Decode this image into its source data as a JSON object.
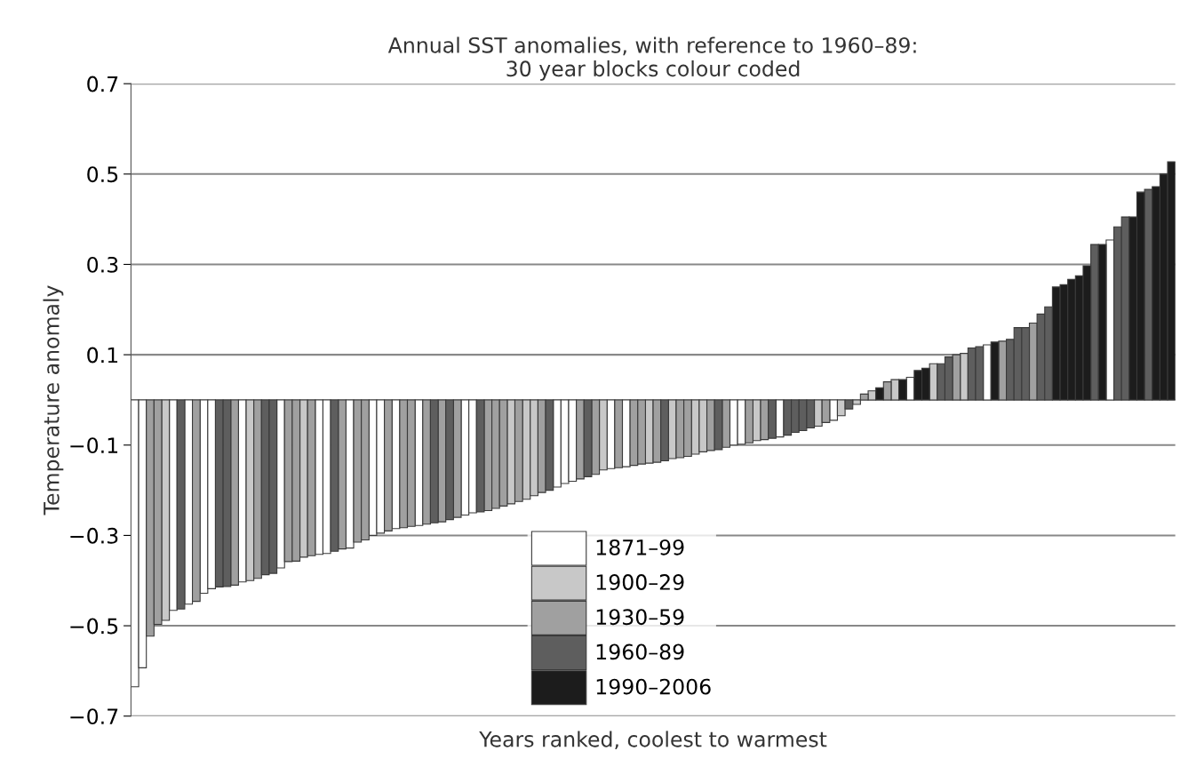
{
  "chart_data": {
    "type": "bar",
    "title": "Annual SST anomalies, with reference to 1960–89:\n30 year blocks colour coded",
    "xlabel": "Years ranked, coolest to warmest",
    "ylabel": "Temperature anomaly",
    "categories": [
      null,
      null,
      null,
      null,
      null,
      null,
      null,
      null,
      null,
      null,
      null,
      null,
      null,
      null,
      null,
      null,
      null,
      null,
      null,
      null,
      null,
      null,
      null,
      null,
      null,
      null,
      null,
      null,
      null,
      null,
      null,
      null,
      null,
      null,
      null,
      null,
      null,
      null,
      null,
      null,
      null,
      null,
      null,
      null,
      null,
      null,
      null,
      null,
      null,
      null,
      null,
      null,
      null,
      null,
      null,
      null,
      null,
      null,
      null,
      null,
      null,
      null,
      null,
      null,
      null,
      null,
      null,
      null,
      null,
      null,
      null,
      null,
      null,
      null,
      null,
      null,
      null,
      null,
      null,
      null,
      null,
      null,
      null,
      null,
      null,
      null,
      null,
      null,
      null,
      null,
      null,
      null,
      null,
      null,
      null,
      null,
      null,
      null,
      null,
      null,
      null,
      null,
      null,
      null,
      null,
      null,
      null,
      null,
      null,
      null,
      null,
      null,
      null,
      null,
      null,
      null,
      null,
      null,
      null,
      null,
      null,
      null,
      null,
      null,
      null,
      null,
      null,
      null,
      null,
      null,
      null,
      null,
      null,
      null,
      null,
      null
    ],
    "series": [
      {
        "name": "1871–99",
        "color": "#ffffff",
        "values": [
          -0.635,
          -0.593,
          null,
          null,
          null,
          -0.466,
          null,
          -0.452,
          null,
          -0.428,
          -0.418,
          null,
          null,
          null,
          -0.403,
          null,
          null,
          null,
          null,
          -0.372,
          null,
          null,
          null,
          null,
          -0.342,
          -0.34,
          null,
          null,
          -0.328,
          null,
          null,
          -0.3,
          -0.295,
          null,
          -0.285,
          null,
          null,
          -0.278,
          null,
          null,
          null,
          null,
          null,
          -0.255,
          -0.25,
          null,
          null,
          null,
          null,
          null,
          null,
          null,
          null,
          null,
          null,
          -0.193,
          -0.185,
          -0.18,
          null,
          null,
          null,
          null,
          -0.152,
          null,
          -0.148,
          null,
          null,
          null,
          null,
          null,
          null,
          null,
          null,
          null,
          null,
          null,
          null,
          null,
          -0.1,
          -0.098,
          null,
          null,
          null,
          null,
          -0.082,
          null,
          null,
          null,
          null,
          null,
          null,
          -0.045,
          null,
          null,
          null,
          null,
          null,
          null,
          null,
          null,
          null,
          0.05,
          null,
          null,
          null,
          null,
          null,
          null,
          null,
          null,
          null,
          0.122,
          null,
          null,
          null,
          null,
          null,
          null,
          null,
          null,
          null,
          null,
          null,
          null,
          null,
          null,
          null,
          0.354,
          null,
          null,
          null,
          null,
          null,
          null,
          null,
          null
        ]
      },
      {
        "name": "1900–29",
        "color": "#c8c8c8",
        "values": [
          null,
          null,
          null,
          null,
          -0.488,
          null,
          null,
          null,
          null,
          null,
          null,
          null,
          null,
          null,
          null,
          -0.4,
          null,
          null,
          null,
          null,
          null,
          null,
          -0.348,
          null,
          null,
          null,
          null,
          null,
          null,
          null,
          null,
          null,
          null,
          null,
          null,
          null,
          null,
          null,
          null,
          null,
          null,
          null,
          null,
          null,
          null,
          null,
          null,
          null,
          null,
          -0.23,
          null,
          -0.22,
          -0.212,
          null,
          null,
          null,
          null,
          null,
          null,
          null,
          null,
          -0.155,
          null,
          null,
          null,
          null,
          null,
          -0.14,
          null,
          null,
          -0.13,
          null,
          null,
          -0.12,
          -0.115,
          null,
          null,
          null,
          null,
          null,
          null,
          -0.09,
          null,
          null,
          null,
          null,
          null,
          null,
          null,
          -0.058,
          null,
          null,
          -0.035,
          null,
          -0.01,
          null,
          0.02,
          null,
          null,
          0.045,
          null,
          null,
          null,
          null,
          0.08,
          null,
          null,
          null,
          0.103,
          null,
          null,
          null,
          null,
          null,
          null,
          null,
          null,
          null,
          null,
          null,
          null,
          null,
          null,
          null,
          null,
          null,
          null,
          null,
          null,
          null,
          null,
          null,
          null,
          null,
          null,
          null
        ]
      },
      {
        "name": "1930–59",
        "color": "#a0a0a0",
        "values": [
          null,
          null,
          -0.523,
          -0.497,
          null,
          null,
          null,
          null,
          -0.446,
          null,
          null,
          null,
          null,
          -0.41,
          null,
          null,
          -0.395,
          null,
          null,
          null,
          -0.358,
          -0.357,
          null,
          -0.345,
          null,
          null,
          null,
          -0.33,
          null,
          -0.315,
          -0.31,
          null,
          null,
          -0.29,
          null,
          -0.283,
          -0.28,
          null,
          -0.275,
          null,
          -0.27,
          null,
          -0.26,
          null,
          null,
          null,
          -0.245,
          -0.24,
          -0.235,
          null,
          -0.225,
          null,
          null,
          -0.205,
          null,
          null,
          null,
          null,
          -0.175,
          null,
          -0.165,
          null,
          null,
          -0.15,
          null,
          -0.145,
          -0.142,
          null,
          -0.138,
          null,
          null,
          -0.128,
          -0.125,
          null,
          null,
          -0.112,
          null,
          -0.105,
          null,
          null,
          -0.095,
          null,
          -0.088,
          null,
          null,
          null,
          null,
          null,
          null,
          null,
          -0.05,
          null,
          null,
          null,
          null,
          0.013,
          null,
          null,
          0.04,
          null,
          null,
          null,
          null,
          null,
          null,
          null,
          null,
          0.1,
          null,
          null,
          null,
          null,
          null,
          0.13,
          null,
          null,
          null,
          0.17,
          null,
          null,
          null,
          null,
          null,
          null,
          null,
          null,
          null,
          null,
          null,
          null,
          null,
          null,
          null,
          null,
          null,
          null
        ]
      },
      {
        "name": "1960–89",
        "color": "#5e5e5e",
        "values": [
          null,
          null,
          null,
          null,
          null,
          null,
          -0.463,
          null,
          null,
          null,
          null,
          -0.414,
          -0.413,
          null,
          null,
          null,
          null,
          -0.387,
          -0.384,
          null,
          null,
          null,
          null,
          null,
          null,
          null,
          -0.335,
          null,
          null,
          null,
          null,
          null,
          null,
          null,
          null,
          null,
          null,
          null,
          null,
          -0.272,
          null,
          -0.265,
          null,
          null,
          null,
          -0.248,
          null,
          null,
          null,
          null,
          null,
          null,
          null,
          null,
          -0.2,
          null,
          null,
          null,
          null,
          -0.17,
          null,
          null,
          null,
          null,
          null,
          null,
          null,
          null,
          null,
          -0.135,
          null,
          null,
          null,
          null,
          null,
          null,
          -0.11,
          null,
          null,
          null,
          null,
          null,
          null,
          -0.085,
          null,
          -0.078,
          -0.072,
          -0.068,
          -0.062,
          null,
          null,
          null,
          null,
          -0.02,
          null,
          null,
          null,
          null,
          null,
          null,
          null,
          null,
          null,
          null,
          null,
          0.08,
          0.095,
          null,
          null,
          0.115,
          0.118,
          null,
          null,
          null,
          0.134,
          0.16,
          0.16,
          null,
          0.19,
          0.206,
          null,
          null,
          null,
          null,
          null,
          0.344,
          null,
          null,
          0.383,
          0.405,
          null,
          null,
          0.466,
          null,
          null,
          null
        ]
      },
      {
        "name": "1990–2006",
        "color": "#1c1c1c",
        "values": [
          null,
          null,
          null,
          null,
          null,
          null,
          null,
          null,
          null,
          null,
          null,
          null,
          null,
          null,
          null,
          null,
          null,
          null,
          null,
          null,
          null,
          null,
          null,
          null,
          null,
          null,
          null,
          null,
          null,
          null,
          null,
          null,
          null,
          null,
          null,
          null,
          null,
          null,
          null,
          null,
          null,
          null,
          null,
          null,
          null,
          null,
          null,
          null,
          null,
          null,
          null,
          null,
          null,
          null,
          null,
          null,
          null,
          null,
          null,
          null,
          null,
          null,
          null,
          null,
          null,
          null,
          null,
          null,
          null,
          null,
          null,
          null,
          null,
          null,
          null,
          null,
          null,
          null,
          null,
          null,
          null,
          null,
          null,
          null,
          null,
          null,
          null,
          null,
          null,
          null,
          null,
          null,
          null,
          null,
          null,
          null,
          null,
          0.027,
          null,
          null,
          0.045,
          null,
          0.065,
          0.07,
          null,
          null,
          null,
          null,
          null,
          null,
          null,
          null,
          0.128,
          null,
          null,
          null,
          null,
          null,
          null,
          null,
          0.25,
          0.255,
          0.267,
          0.275,
          0.297,
          null,
          0.344,
          null,
          null,
          null,
          0.405,
          0.46,
          null,
          0.472,
          0.5,
          0.527
        ]
      }
    ],
    "ylim": [
      -0.7,
      0.7
    ],
    "yticks": [
      0.7,
      0.5,
      0.3,
      0.1,
      {
        "value": -0.1,
        "label": "−0.1"
      },
      {
        "value": -0.3,
        "label": "−0.3"
      },
      {
        "value": -0.5,
        "label": "−0.5"
      },
      {
        "value": -0.7,
        "label": "−0.7"
      }
    ],
    "grid": "y",
    "legend": "bottom",
    "tick_labels": "y"
  }
}
